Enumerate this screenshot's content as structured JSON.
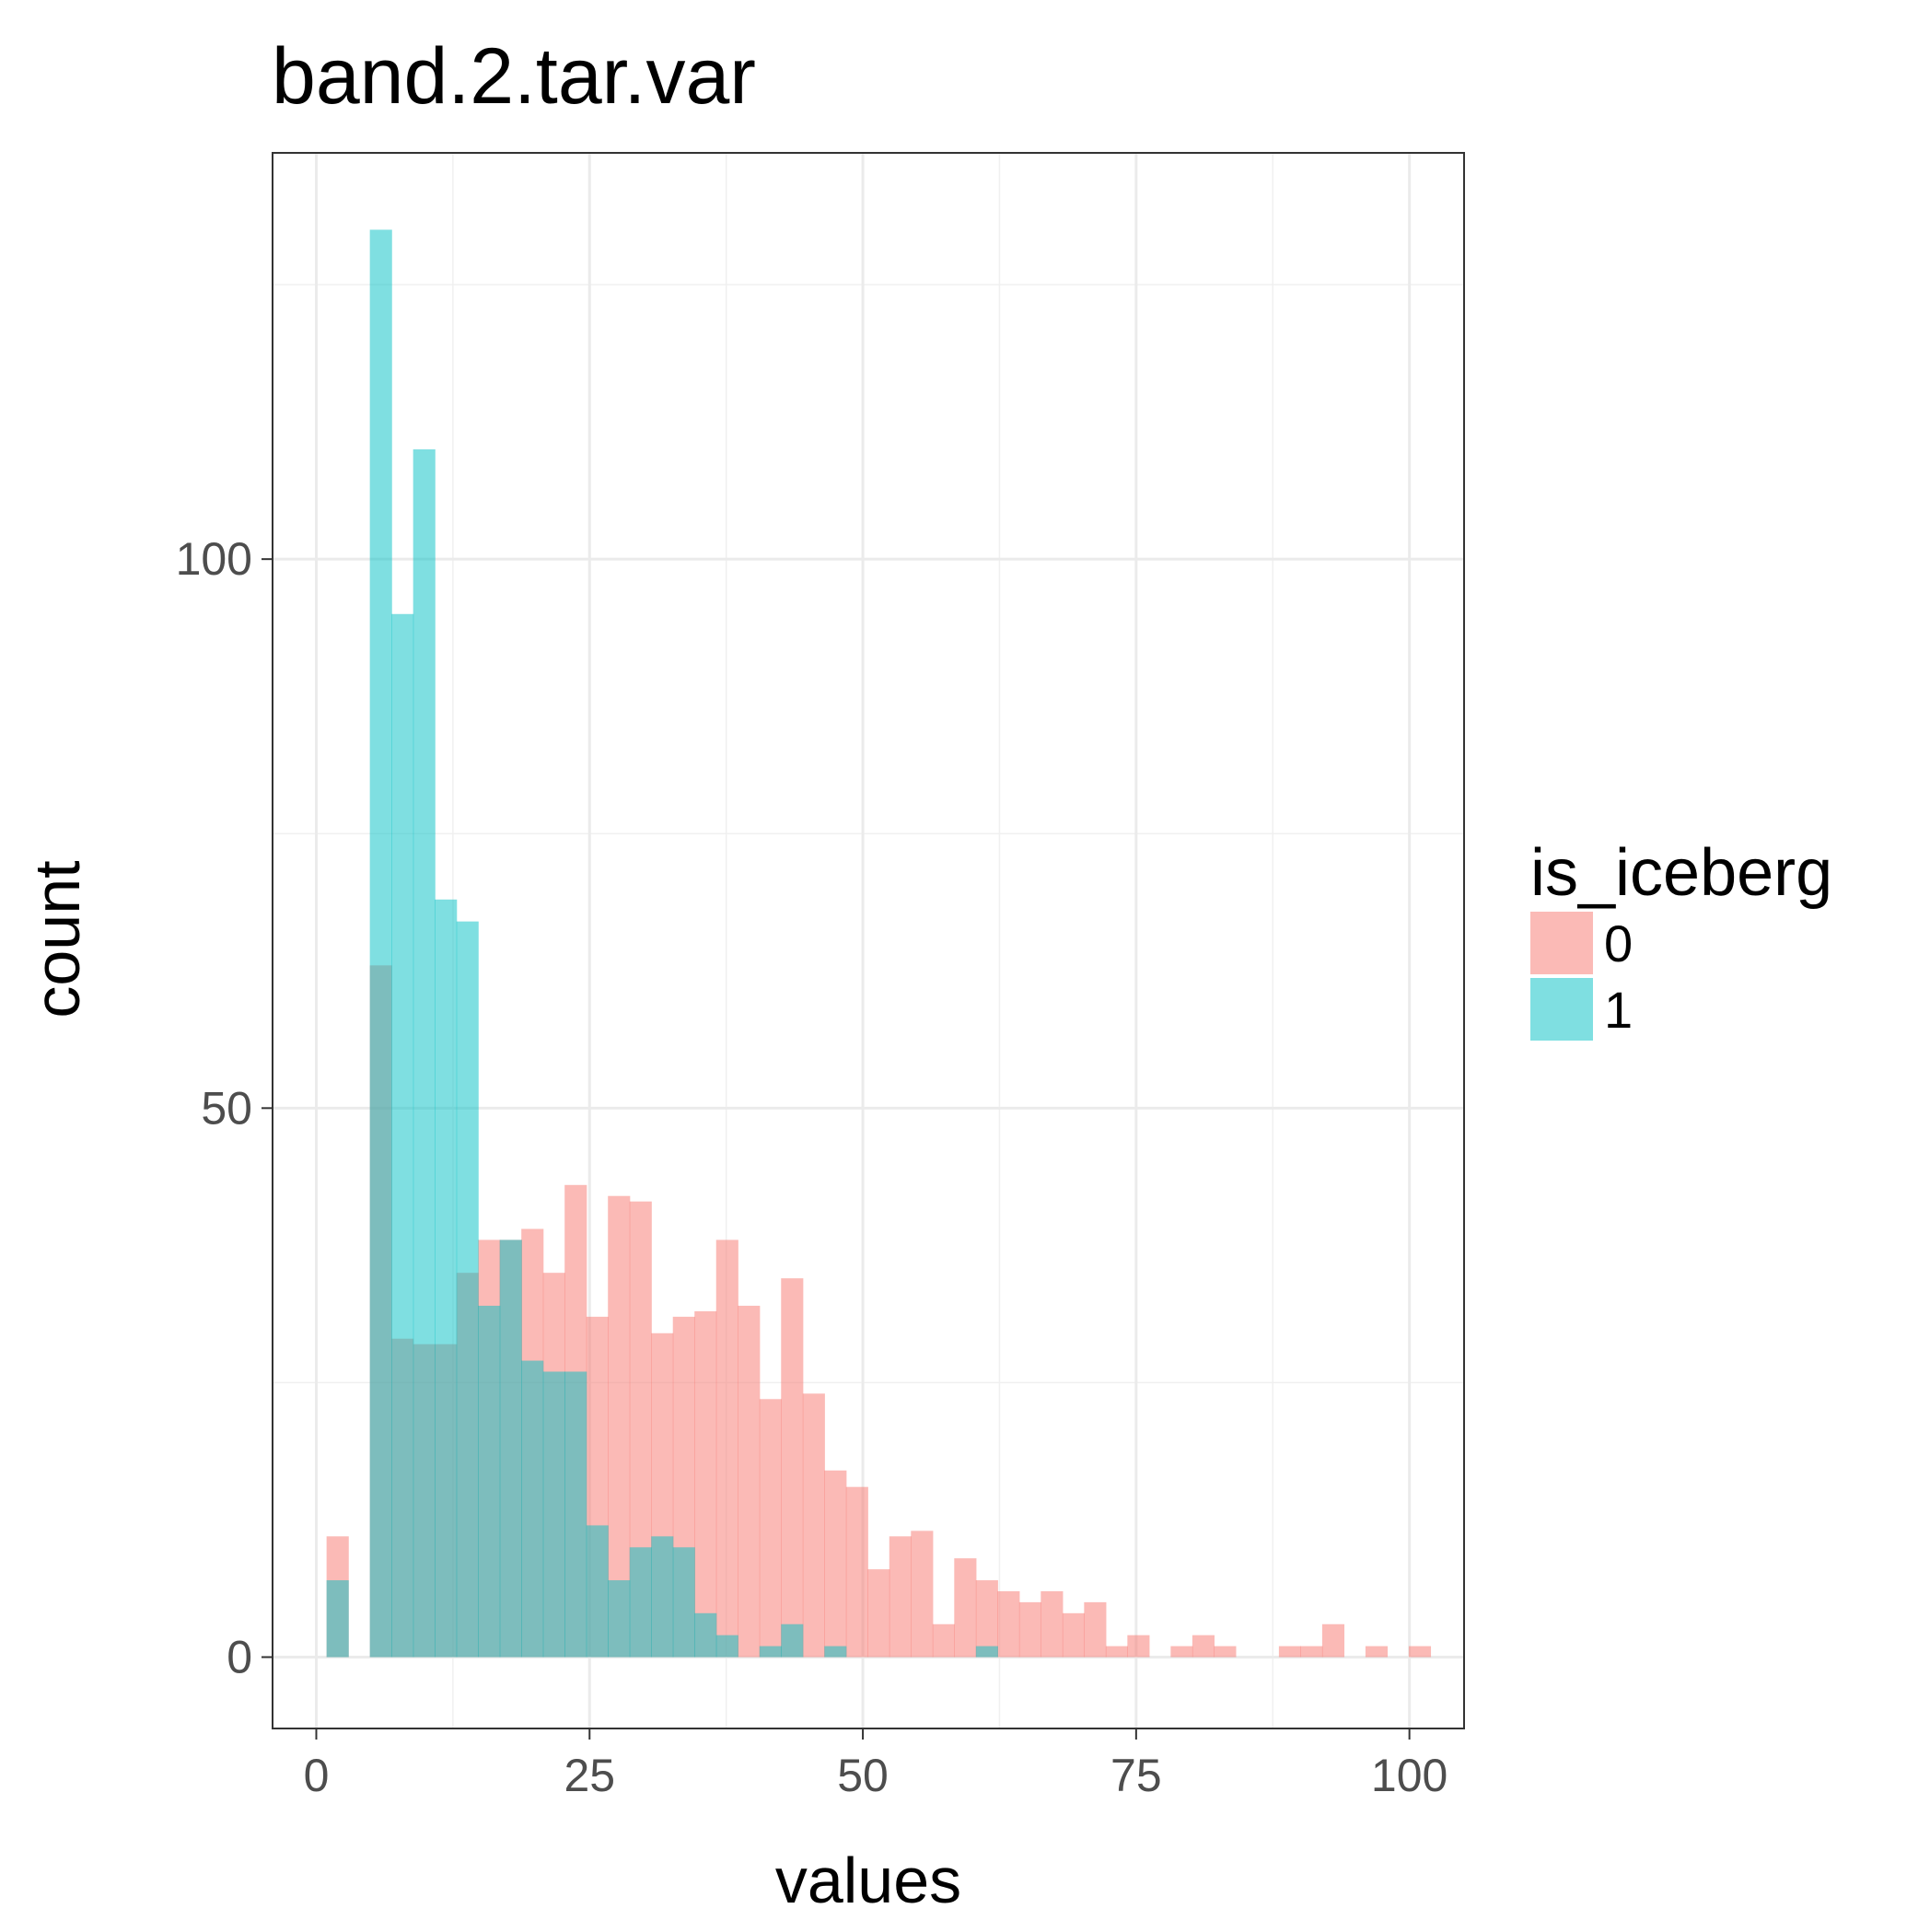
{
  "chart_data": {
    "type": "bar",
    "subtype": "overlaid-histogram",
    "title": "band.2.tar.var",
    "xlabel": "values",
    "ylabel": "count",
    "xlim": [
      -4,
      105
    ],
    "ylim": [
      -6.5,
      137
    ],
    "xticks": [
      0,
      25,
      50,
      75,
      100
    ],
    "yticks": [
      0,
      50,
      100
    ],
    "grid": true,
    "bin_width": 1.98,
    "bin_start": 0.94,
    "legend": {
      "title": "is_iceberg",
      "position": "right",
      "entries": [
        {
          "label": "0",
          "color": "#f8766d"
        },
        {
          "label": "1",
          "color": "#00bfc4"
        }
      ]
    },
    "series": [
      {
        "name": "0",
        "color": "#f8766d",
        "values": [
          11,
          0,
          63,
          29,
          28.5,
          28.5,
          35,
          38,
          38,
          39,
          35,
          43,
          31,
          42,
          41.5,
          29.5,
          31,
          31.5,
          38,
          32,
          23.5,
          34.5,
          24,
          17,
          15.5,
          8,
          11,
          11.5,
          3,
          9,
          7,
          6,
          5,
          6,
          4,
          5,
          1,
          2,
          0,
          1,
          2,
          1,
          0,
          0,
          1,
          1,
          3,
          0,
          1,
          0,
          1
        ]
      },
      {
        "name": "1",
        "color": "#00bfc4",
        "values": [
          7,
          0,
          130,
          95,
          110,
          69,
          67,
          32,
          38,
          27,
          26,
          26,
          12,
          7,
          10,
          11,
          10,
          4,
          2,
          0,
          1,
          3,
          0,
          1,
          0,
          0,
          0,
          0,
          0,
          0,
          1,
          0,
          0,
          0,
          0,
          0,
          0,
          0,
          0,
          0,
          0,
          0,
          0,
          0,
          0,
          0,
          0,
          0,
          0,
          0,
          0
        ]
      }
    ]
  }
}
